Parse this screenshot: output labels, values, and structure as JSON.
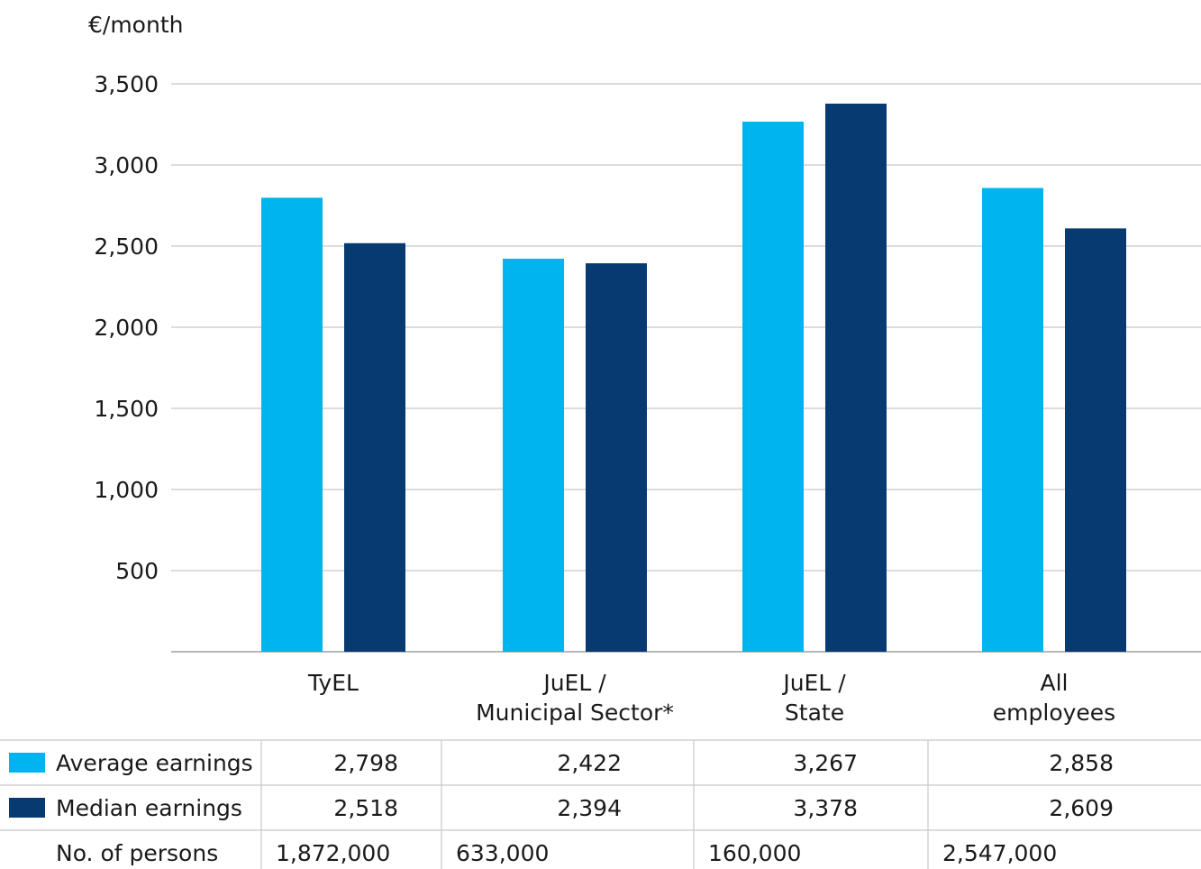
{
  "chart_data": {
    "type": "bar",
    "title": "",
    "unit_label": "€/month",
    "categories": [
      [
        "TyEL"
      ],
      [
        "JuEL /",
        "Municipal Sector*"
      ],
      [
        "JuEL /",
        "State"
      ],
      [
        "All",
        "employees"
      ]
    ],
    "series": [
      {
        "name": "Average earnings",
        "color": "#00B4F0",
        "values": [
          2798,
          2422,
          3267,
          2858
        ]
      },
      {
        "name": "Median earnings",
        "color": "#073A70",
        "values": [
          2518,
          2394,
          3378,
          2609
        ]
      }
    ],
    "ylim": [
      0,
      3500
    ],
    "yticks": [
      500,
      1000,
      1500,
      2000,
      2500,
      3000,
      3500
    ],
    "ytick_labels": [
      "500",
      "1,000",
      "1,500",
      "2,000",
      "2,500",
      "3,000",
      "3,500"
    ],
    "grid": true,
    "table": {
      "rows": [
        {
          "label": "Average earnings",
          "swatch": "#00B4F0",
          "cells": [
            "2,798",
            "2,422",
            "3,267",
            "2,858"
          ]
        },
        {
          "label": "Median earnings",
          "swatch": "#073A70",
          "cells": [
            "2,518",
            "2,394",
            "3,378",
            "2,609"
          ]
        },
        {
          "label": "No. of persons",
          "swatch": null,
          "cells": [
            "1,872,000",
            "633,000",
            "160,000",
            "2,547,000"
          ]
        }
      ]
    }
  }
}
